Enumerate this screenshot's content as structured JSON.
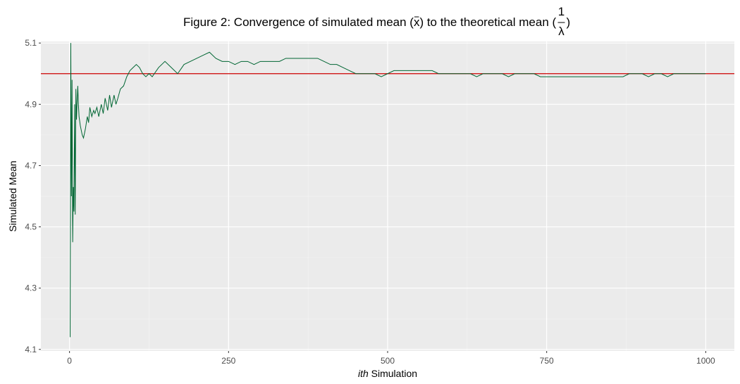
{
  "chart_data": {
    "type": "line",
    "title": {
      "prefix": "Figure 2: Convergence of simulated mean (",
      "xbar": "x",
      "middle": ") to the theoretical mean (",
      "numerator": "1",
      "denominator": "λ",
      "suffix": ")"
    },
    "xlabel": {
      "italic": "ith",
      "rest": " Simulation"
    },
    "ylabel": "Simulated Mean",
    "xlim": [
      -45,
      1045
    ],
    "ylim": [
      4.095,
      5.105
    ],
    "x_ticks": [
      0,
      250,
      500,
      750,
      1000
    ],
    "x_tick_labels": [
      "0",
      "250",
      "500",
      "750",
      "1000"
    ],
    "y_ticks": [
      4.1,
      4.3,
      4.5,
      4.7,
      4.9,
      5.1
    ],
    "y_tick_labels": [
      "4.1",
      "4.3",
      "4.5",
      "4.7",
      "4.9",
      "5.1"
    ],
    "grid": true,
    "background_color": "#ebebeb",
    "reference_line": {
      "y": 5.0,
      "color": "#cc0000"
    },
    "series": [
      {
        "color": "#006633",
        "points": [
          [
            1,
            4.14
          ],
          [
            2,
            5.1
          ],
          [
            3,
            4.6
          ],
          [
            4,
            4.98
          ],
          [
            5,
            4.45
          ],
          [
            6,
            4.63
          ],
          [
            7,
            4.55
          ],
          [
            8,
            4.9
          ],
          [
            9,
            4.54
          ],
          [
            10,
            4.95
          ],
          [
            11,
            4.85
          ],
          [
            12,
            4.91
          ],
          [
            13,
            4.96
          ],
          [
            14,
            4.9
          ],
          [
            15,
            4.86
          ],
          [
            17,
            4.83
          ],
          [
            20,
            4.8
          ],
          [
            22,
            4.79
          ],
          [
            25,
            4.82
          ],
          [
            28,
            4.86
          ],
          [
            30,
            4.84
          ],
          [
            32,
            4.89
          ],
          [
            35,
            4.86
          ],
          [
            38,
            4.88
          ],
          [
            40,
            4.87
          ],
          [
            43,
            4.89
          ],
          [
            46,
            4.86
          ],
          [
            50,
            4.9
          ],
          [
            53,
            4.87
          ],
          [
            56,
            4.92
          ],
          [
            60,
            4.88
          ],
          [
            63,
            4.93
          ],
          [
            66,
            4.89
          ],
          [
            70,
            4.93
          ],
          [
            73,
            4.9
          ],
          [
            76,
            4.92
          ],
          [
            80,
            4.95
          ],
          [
            85,
            4.96
          ],
          [
            90,
            4.99
          ],
          [
            95,
            5.01
          ],
          [
            100,
            5.02
          ],
          [
            105,
            5.03
          ],
          [
            110,
            5.02
          ],
          [
            115,
            5.0
          ],
          [
            120,
            4.99
          ],
          [
            125,
            5.0
          ],
          [
            130,
            4.99
          ],
          [
            140,
            5.02
          ],
          [
            150,
            5.04
          ],
          [
            160,
            5.02
          ],
          [
            170,
            5.0
          ],
          [
            180,
            5.03
          ],
          [
            190,
            5.04
          ],
          [
            200,
            5.05
          ],
          [
            210,
            5.06
          ],
          [
            220,
            5.07
          ],
          [
            230,
            5.05
          ],
          [
            240,
            5.04
          ],
          [
            250,
            5.04
          ],
          [
            260,
            5.03
          ],
          [
            270,
            5.04
          ],
          [
            280,
            5.04
          ],
          [
            290,
            5.03
          ],
          [
            300,
            5.04
          ],
          [
            310,
            5.04
          ],
          [
            320,
            5.04
          ],
          [
            330,
            5.04
          ],
          [
            340,
            5.05
          ],
          [
            350,
            5.05
          ],
          [
            360,
            5.05
          ],
          [
            370,
            5.05
          ],
          [
            380,
            5.05
          ],
          [
            390,
            5.05
          ],
          [
            400,
            5.04
          ],
          [
            410,
            5.03
          ],
          [
            420,
            5.03
          ],
          [
            430,
            5.02
          ],
          [
            440,
            5.01
          ],
          [
            450,
            5.0
          ],
          [
            460,
            5.0
          ],
          [
            470,
            5.0
          ],
          [
            480,
            5.0
          ],
          [
            490,
            4.99
          ],
          [
            500,
            5.0
          ],
          [
            510,
            5.01
          ],
          [
            520,
            5.01
          ],
          [
            530,
            5.01
          ],
          [
            540,
            5.01
          ],
          [
            550,
            5.01
          ],
          [
            560,
            5.01
          ],
          [
            570,
            5.01
          ],
          [
            580,
            5.0
          ],
          [
            590,
            5.0
          ],
          [
            600,
            5.0
          ],
          [
            610,
            5.0
          ],
          [
            620,
            5.0
          ],
          [
            630,
            5.0
          ],
          [
            640,
            4.99
          ],
          [
            650,
            5.0
          ],
          [
            660,
            5.0
          ],
          [
            670,
            5.0
          ],
          [
            680,
            5.0
          ],
          [
            690,
            4.99
          ],
          [
            700,
            5.0
          ],
          [
            710,
            5.0
          ],
          [
            720,
            5.0
          ],
          [
            730,
            5.0
          ],
          [
            740,
            4.99
          ],
          [
            750,
            4.99
          ],
          [
            760,
            4.99
          ],
          [
            770,
            4.99
          ],
          [
            780,
            4.99
          ],
          [
            790,
            4.99
          ],
          [
            800,
            4.99
          ],
          [
            810,
            4.99
          ],
          [
            820,
            4.99
          ],
          [
            830,
            4.99
          ],
          [
            840,
            4.99
          ],
          [
            850,
            4.99
          ],
          [
            860,
            4.99
          ],
          [
            870,
            4.99
          ],
          [
            880,
            5.0
          ],
          [
            890,
            5.0
          ],
          [
            900,
            5.0
          ],
          [
            910,
            4.99
          ],
          [
            920,
            5.0
          ],
          [
            930,
            5.0
          ],
          [
            940,
            4.99
          ],
          [
            950,
            5.0
          ],
          [
            960,
            5.0
          ],
          [
            970,
            5.0
          ],
          [
            980,
            5.0
          ],
          [
            990,
            5.0
          ],
          [
            1000,
            5.0
          ]
        ]
      }
    ]
  }
}
